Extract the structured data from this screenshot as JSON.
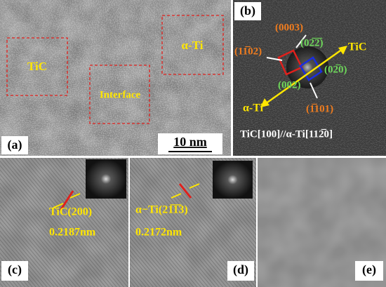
{
  "panel_a": {
    "label": "(a)",
    "regions": [
      "TiC",
      "Interface",
      "α-Ti"
    ],
    "scale_bar": "10 nm"
  },
  "panel_b": {
    "label": "(b)",
    "spots": [
      "(0003)",
      "(11̅02)",
      "(02̅2̅)",
      "(02̅0)",
      "(002)",
      "(1̅101)"
    ],
    "phases": [
      "TiC",
      "α-Ti"
    ],
    "orientation": "TiC[100]//α-Ti[112̅0]"
  },
  "panel_c": {
    "label": "(c)",
    "plane": "TiC(200)",
    "spacing": "0.2187nm"
  },
  "panel_d": {
    "label": "(d)",
    "plane": "α−Ti(21̅1̅3)",
    "spacing": "0.2172nm"
  },
  "panel_e": {
    "label": "(e)"
  }
}
